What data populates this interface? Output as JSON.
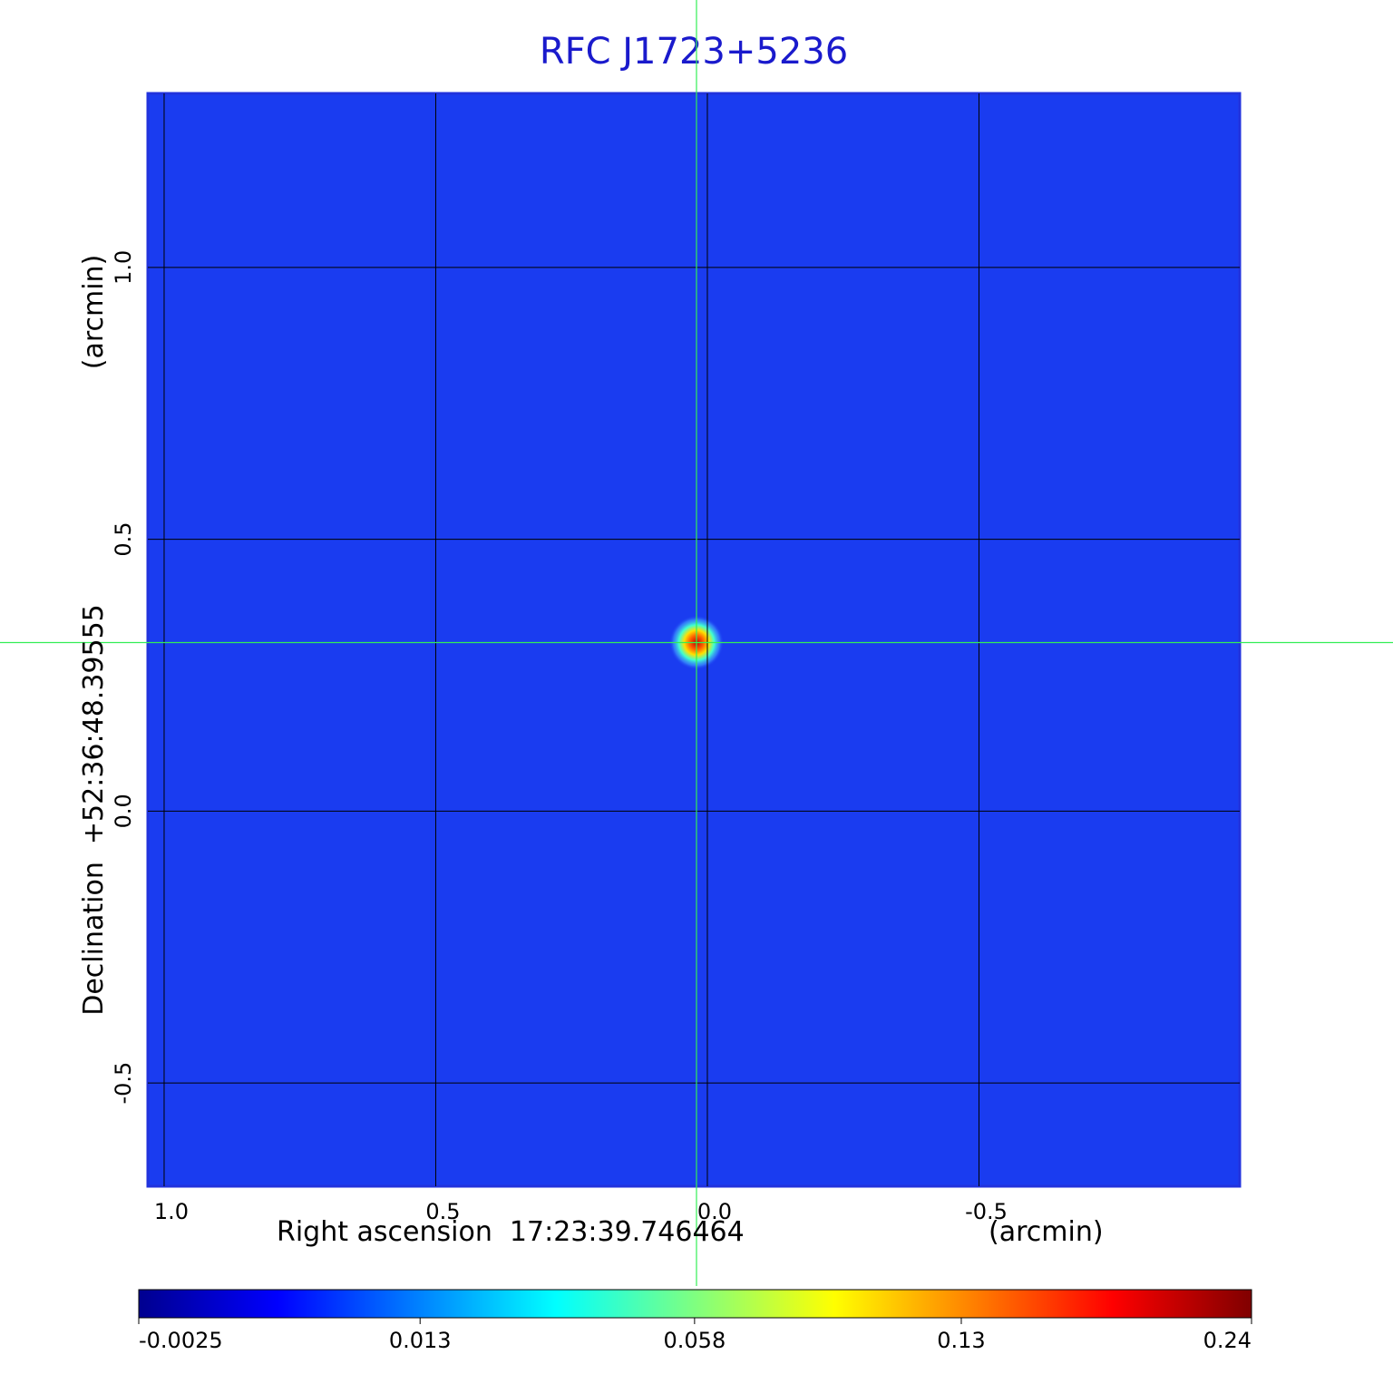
{
  "chart_data": {
    "type": "image",
    "title": "RFC J1723+5236",
    "x_label": "Right ascension  17:23:39.746464",
    "x_unit": "(arcmin)",
    "y_label": "Declination  +52:36:48.39555",
    "y_unit": "(arcmin)",
    "xlim": [
      1.03,
      -0.98
    ],
    "ylim": [
      -0.69,
      1.32
    ],
    "xticks": [
      {
        "value": 1,
        "label": "1.0"
      },
      0.5,
      {
        "value": 0,
        "label": "0.0"
      },
      -0.5
    ],
    "yticks": [
      -0.5,
      {
        "value": 0,
        "label": "0.0"
      },
      0.5,
      {
        "value": 1,
        "label": "1.0"
      }
    ],
    "grid": true,
    "crosshair": {
      "x": 0.02,
      "y": 0.31
    },
    "source": {
      "x": 0.02,
      "y": 0.31,
      "peak": 0.24
    },
    "colormap": "jet",
    "colorbar_scale": "sqrt",
    "clim": [
      -0.0025,
      0.24
    ],
    "colorbar_ticks": [
      -0.0025,
      0.013,
      0.058,
      0.13,
      0.24
    ]
  }
}
